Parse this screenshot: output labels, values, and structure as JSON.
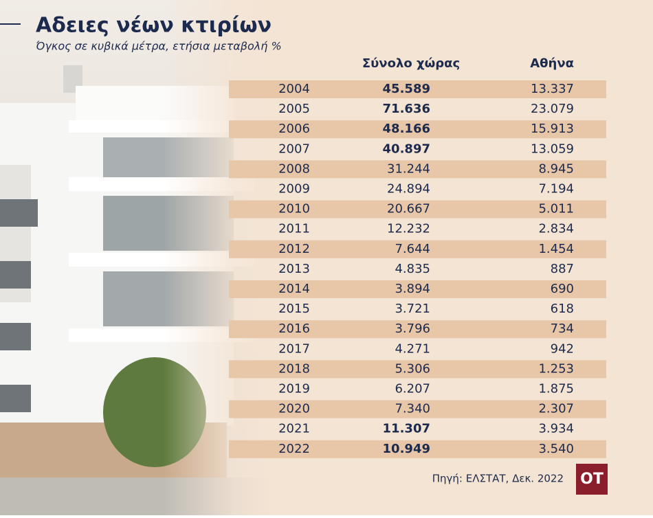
{
  "header": {
    "title": "Αδειες νέων κτιρίων",
    "subtitle": "Όγκος σε κυβικά μέτρα, ετήσια μεταβολή %"
  },
  "table": {
    "columns": [
      "Σύνολο χώρας",
      "Αθήνα"
    ],
    "rows": [
      [
        "2004",
        "45.589",
        "13.337"
      ],
      [
        "2005",
        "71.636",
        "23.079"
      ],
      [
        "2006",
        "48.166",
        "15.913"
      ],
      [
        "2007",
        "40.897",
        "13.059"
      ],
      [
        "2008",
        "31.244",
        "8.945"
      ],
      [
        "2009",
        "24.894",
        "7.194"
      ],
      [
        "2010",
        "20.667",
        "5.011"
      ],
      [
        "2011",
        "12.232",
        "2.834"
      ],
      [
        "2012",
        "7.644",
        "1.454"
      ],
      [
        "2013",
        "4.835",
        "887"
      ],
      [
        "2014",
        "3.894",
        "690"
      ],
      [
        "2015",
        "3.721",
        "618"
      ],
      [
        "2016",
        "3.796",
        "734"
      ],
      [
        "2017",
        "4.271",
        "942"
      ],
      [
        "2018",
        "5.306",
        "1.253"
      ],
      [
        "2019",
        "6.207",
        "1.875"
      ],
      [
        "2020",
        "7.340",
        "2.307"
      ],
      [
        "2021",
        "11.307",
        "3.934"
      ],
      [
        "2022",
        "10.949",
        "3.540"
      ]
    ],
    "bold_rows": [
      0,
      1,
      2,
      3,
      17,
      18
    ]
  },
  "footer": {
    "source": "Πηγή: ΕΛΣΤΑΤ, Δεκ. 2022",
    "logo": "OT"
  }
}
